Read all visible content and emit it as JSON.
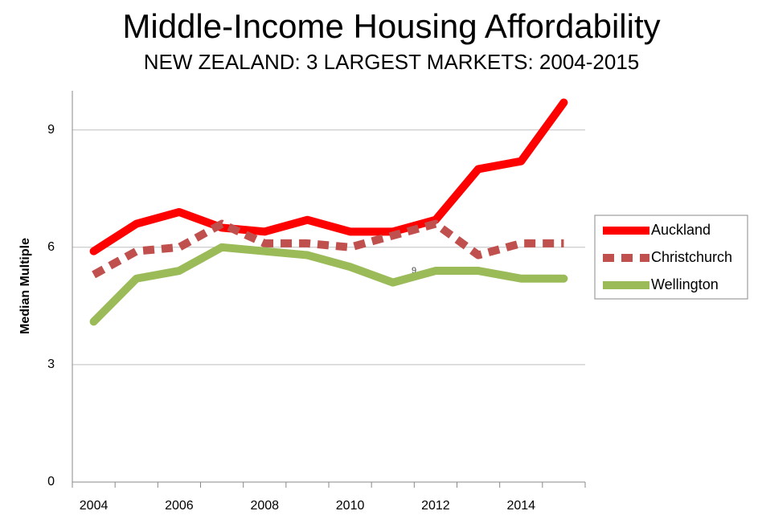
{
  "chart_data": {
    "type": "line",
    "title": "Middle-Income Housing Affordability",
    "subtitle": "NEW ZEALAND: 3 LARGEST MARKETS: 2004-2015",
    "y_label": "Median Multiple",
    "annotation": "9",
    "categories": [
      "2004",
      null,
      "2006",
      null,
      "2008",
      null,
      "2010",
      null,
      "2012",
      null,
      "2014",
      null
    ],
    "series": [
      {
        "name": "Auckland",
        "color": "#ff0000",
        "style": "solid",
        "values": [
          5.9,
          6.6,
          6.9,
          6.5,
          6.4,
          6.7,
          6.4,
          6.4,
          6.7,
          8.0,
          8.2,
          9.7
        ]
      },
      {
        "name": "Christchurch",
        "color": "#c0504d",
        "style": "dashed",
        "values": [
          5.3,
          5.9,
          6.0,
          6.6,
          6.1,
          6.1,
          6.0,
          6.3,
          6.6,
          5.8,
          6.1,
          6.1
        ]
      },
      {
        "name": "Wellington",
        "color": "#9bbb59",
        "style": "solid",
        "values": [
          4.1,
          5.2,
          5.4,
          6.0,
          5.9,
          5.8,
          5.5,
          5.1,
          5.4,
          5.4,
          5.2,
          5.2
        ]
      }
    ],
    "ylim": [
      0,
      10
    ],
    "yticks": [
      0,
      3,
      6,
      9
    ],
    "grid": true,
    "legend": "right"
  }
}
